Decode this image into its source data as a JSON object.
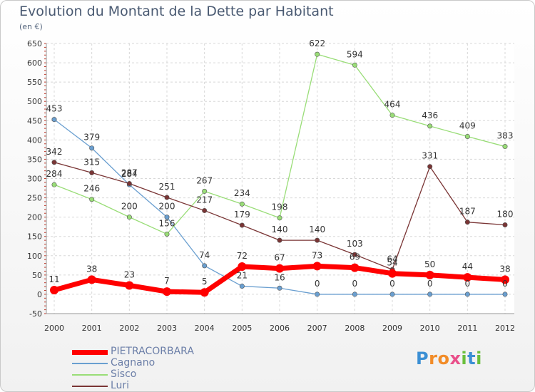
{
  "title": "Evolution du Montant de la Dette par Habitant",
  "subtitle": "(en €)",
  "logo": {
    "text": "Proxiti",
    "letters": [
      "P",
      "r",
      "o",
      "x",
      "i",
      "t",
      "i"
    ],
    "colors": [
      "#3b8fd4",
      "#f28c28",
      "#f28c28",
      "#e94f8a",
      "#6abf3d",
      "#3b8fd4",
      "#6abf3d"
    ]
  },
  "chart_data": {
    "type": "line",
    "title": "Evolution du Montant de la Dette par Habitant",
    "subtitle": "(en €)",
    "x": [
      "2000",
      "2001",
      "2002",
      "2003",
      "2004",
      "2005",
      "2006",
      "2007",
      "2008",
      "2009",
      "2010",
      "2011",
      "2012"
    ],
    "ylim": [
      -50,
      650
    ],
    "yticks": [
      -50,
      0,
      50,
      100,
      150,
      200,
      250,
      300,
      350,
      400,
      450,
      500,
      550,
      600,
      650
    ],
    "grid": true,
    "legend_position": "bottom-left",
    "series": [
      {
        "name": "PIETRACORBARA",
        "color": "#ff0000",
        "width": 7,
        "values": [
          11,
          38,
          23,
          7,
          5,
          72,
          67,
          73,
          69,
          54,
          50,
          44,
          38
        ]
      },
      {
        "name": "Cagnano",
        "color": "#6a9fd0",
        "width": 1.3,
        "values": [
          453,
          379,
          284,
          200,
          74,
          21,
          16,
          0,
          0,
          0,
          0,
          0,
          0
        ]
      },
      {
        "name": "Sisco",
        "color": "#99dd77",
        "width": 1.3,
        "values": [
          284,
          246,
          200,
          156,
          267,
          234,
          198,
          622,
          594,
          464,
          436,
          409,
          383
        ]
      },
      {
        "name": "Luri",
        "color": "#7a3535",
        "width": 1.3,
        "values": [
          342,
          315,
          287,
          251,
          217,
          179,
          140,
          140,
          103,
          64,
          331,
          187,
          180
        ]
      }
    ],
    "data_labels": {
      "PIETRACORBARA": [
        "11",
        "38",
        "23",
        "7",
        "5",
        "72",
        "67",
        "73",
        "69",
        "54",
        "50",
        "44",
        "38"
      ],
      "Cagnano": [
        "453",
        "379",
        "284",
        "200",
        "74",
        "21",
        "16",
        "0",
        "0",
        "0",
        "0",
        "0",
        "0"
      ],
      "Sisco": [
        "284",
        "246",
        "200",
        "156",
        "267",
        "234",
        "198",
        "622",
        "594",
        "464",
        "436",
        "409",
        "383"
      ],
      "Luri": [
        "342",
        "315",
        "287",
        "251",
        "217",
        "179",
        "140",
        "140",
        "103",
        "64",
        "331",
        "187",
        "180"
      ]
    }
  }
}
